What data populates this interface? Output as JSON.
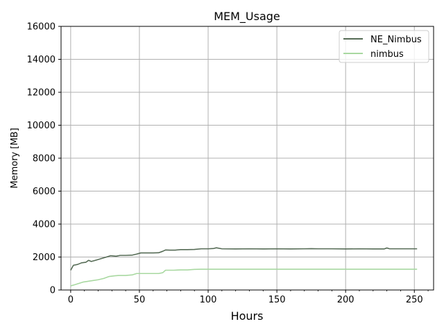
{
  "chart_data": {
    "type": "line",
    "title": "MEM_Usage",
    "xlabel": "Hours",
    "ylabel": "Memory [MB]",
    "xlim": [
      -7,
      264
    ],
    "ylim": [
      0,
      16000
    ],
    "xticks": [
      0,
      50,
      100,
      150,
      200,
      250
    ],
    "yticks": [
      0,
      2000,
      4000,
      6000,
      8000,
      10000,
      12000,
      14000,
      16000
    ],
    "grid": true,
    "legend_position": "top-right",
    "series": [
      {
        "name": "NE_Nimbus",
        "color": "#556b55",
        "x": [
          0,
          2,
          5,
          8,
          11,
          13,
          15,
          18,
          22,
          26,
          29,
          33,
          36,
          40,
          45,
          48,
          51,
          55,
          60,
          64,
          67,
          69,
          72,
          76,
          80,
          85,
          90,
          95,
          100,
          104,
          106,
          110,
          120,
          130,
          140,
          150,
          160,
          170,
          175,
          180,
          190,
          200,
          210,
          220,
          228,
          230,
          232,
          240,
          252
        ],
        "y": [
          1200,
          1500,
          1550,
          1650,
          1680,
          1800,
          1730,
          1800,
          1900,
          2000,
          2080,
          2050,
          2100,
          2100,
          2120,
          2180,
          2250,
          2250,
          2250,
          2260,
          2350,
          2430,
          2420,
          2420,
          2450,
          2450,
          2460,
          2500,
          2500,
          2520,
          2560,
          2500,
          2490,
          2500,
          2490,
          2500,
          2490,
          2500,
          2510,
          2500,
          2500,
          2490,
          2500,
          2490,
          2490,
          2550,
          2500,
          2500,
          2500
        ]
      },
      {
        "name": "nimbus",
        "color": "#a8d8a0",
        "x": [
          0,
          3,
          6,
          9,
          12,
          16,
          20,
          24,
          28,
          32,
          35,
          40,
          45,
          48,
          52,
          58,
          64,
          67,
          69,
          75,
          80,
          85,
          90,
          95,
          100,
          150,
          200,
          252
        ],
        "y": [
          250,
          320,
          400,
          480,
          520,
          570,
          620,
          700,
          820,
          860,
          880,
          880,
          920,
          1000,
          1000,
          1000,
          1000,
          1050,
          1200,
          1200,
          1220,
          1220,
          1250,
          1260,
          1260,
          1260,
          1260,
          1260
        ]
      }
    ]
  }
}
